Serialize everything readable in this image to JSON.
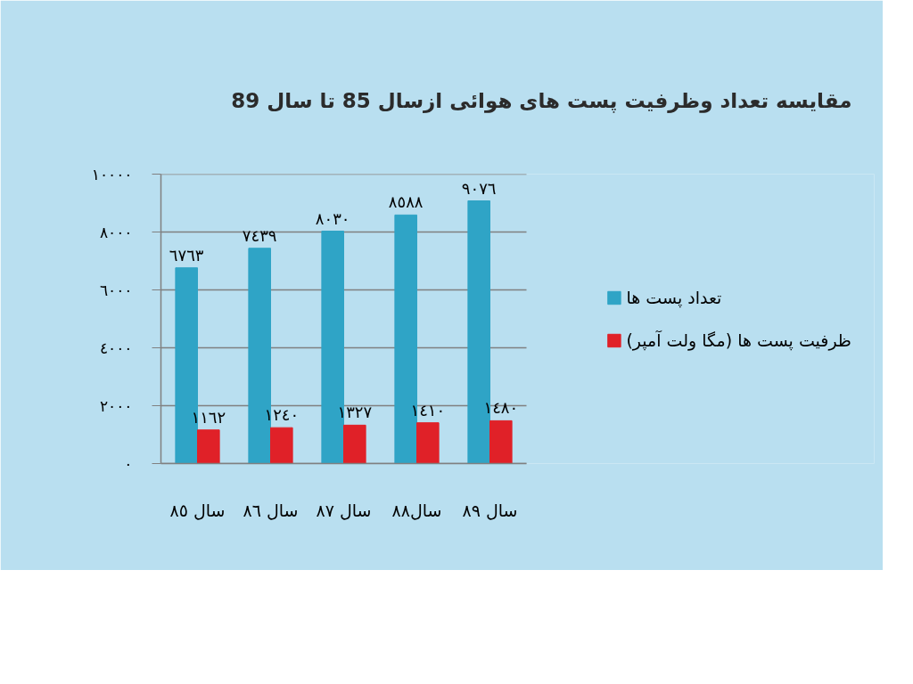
{
  "chart_data": {
    "type": "bar",
    "title": "مقایسه تعداد وظرفیت پست های هوائی ازسال 85 تا سال 89",
    "categories": [
      "سال ٨٥",
      "سال ٨٦",
      "سال ٨٧",
      "سال٨٨",
      "سال ٨٩"
    ],
    "series": [
      {
        "name": "تعداد پست ها",
        "color": "#2fa4c6",
        "values": [
          6763,
          7439,
          8030,
          8588,
          9076
        ],
        "value_labels": [
          "٦٧٦٣",
          "٧٤٣٩",
          "٨٠٣٠",
          "٨٥٨٨",
          "٩٠٧٦"
        ]
      },
      {
        "name": "ظرفیت پست ها (مگا ولت آمپر)",
        "color": "#e02128",
        "values": [
          1162,
          1240,
          1327,
          1410,
          1480
        ],
        "value_labels": [
          "١١٦٢",
          "١٢٤٠",
          "١٣٢٧",
          "١٤١٠",
          "١٤٨٠"
        ]
      }
    ],
    "ylim": [
      0,
      10000
    ],
    "yticks": [
      {
        "value": 0,
        "label": "٠"
      },
      {
        "value": 2000,
        "label": "٢٠٠٠"
      },
      {
        "value": 4000,
        "label": "٤٠٠٠"
      },
      {
        "value": 6000,
        "label": "٦٠٠٠"
      },
      {
        "value": 8000,
        "label": "٨٠٠٠"
      },
      {
        "value": 10000,
        "label": "١٠٠٠٠"
      }
    ],
    "grid": "y",
    "legend": "right"
  }
}
